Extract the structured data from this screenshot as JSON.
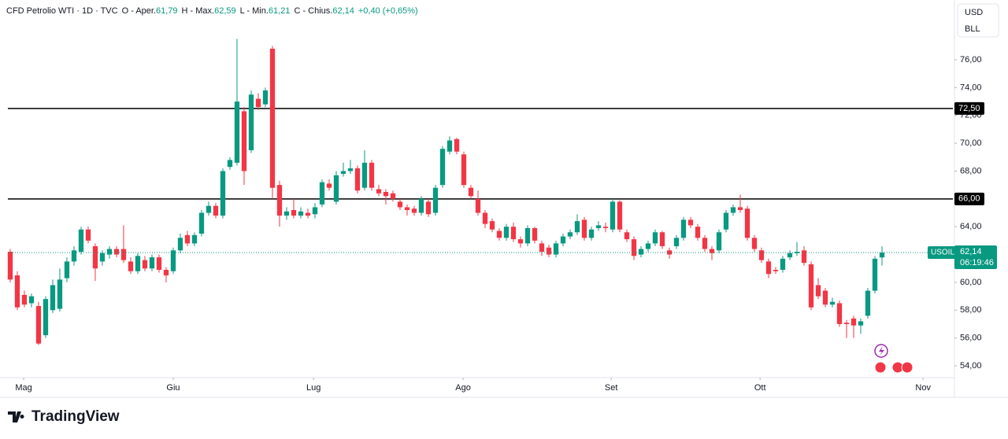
{
  "chart_data": {
    "type": "candlestick",
    "header": {
      "symbol": "CFD Petrolio WTI · 1D · TVC",
      "items": [
        {
          "label": "O - Aper.",
          "value": "61,79"
        },
        {
          "label": "H - Max.",
          "value": "62,59"
        },
        {
          "label": "L - Min.",
          "value": "61,21"
        },
        {
          "label": "C - Chius.",
          "value": "62,14"
        }
      ],
      "change": "+0,40 (+0,65%)"
    },
    "currency": "USD",
    "unit": "BLL",
    "brand": "TradingView",
    "up_color": "#089981",
    "down_color": "#f23645",
    "ylim": [
      53.15,
      80.3
    ],
    "yticks": [
      {
        "value": 54,
        "label": "54,00"
      },
      {
        "value": 56,
        "label": "56,00"
      },
      {
        "value": 58,
        "label": "58,00"
      },
      {
        "value": 60,
        "label": "60,00"
      },
      {
        "value": 62,
        "label": "62,00"
      },
      {
        "value": 64,
        "label": "64,00"
      },
      {
        "value": 66,
        "label": "66,00"
      },
      {
        "value": 68,
        "label": "68,00"
      },
      {
        "value": 70,
        "label": "70,00"
      },
      {
        "value": 72,
        "label": "72,00"
      },
      {
        "value": 74,
        "label": "74,00"
      },
      {
        "value": 76,
        "label": "76,00"
      }
    ],
    "xlim": [
      -0.33,
      133
    ],
    "xticks": [
      {
        "value": 1.9,
        "label": "Mag"
      },
      {
        "value": 23,
        "label": "Giu"
      },
      {
        "value": 42.8,
        "label": "Lug"
      },
      {
        "value": 63.9,
        "label": "Ago"
      },
      {
        "value": 84.8,
        "label": "Set"
      },
      {
        "value": 105.8,
        "label": "Ott"
      },
      {
        "value": 128.8,
        "label": "Nov"
      }
    ],
    "hlines": [
      {
        "value": 72.5,
        "label": "72,50"
      },
      {
        "value": 66,
        "label": "66,00"
      }
    ],
    "price_label": {
      "symbol": "USOIL",
      "value": {
        "value": 62.14,
        "label": "62,14"
      },
      "countdown": "06:19:46"
    },
    "candles": [
      {
        "o": 62.2,
        "h": 62.4,
        "l": 60.0,
        "c": 60.2
      },
      {
        "o": 60.5,
        "h": 60.8,
        "l": 58.0,
        "c": 58.2
      },
      {
        "o": 59.1,
        "h": 59.4,
        "l": 58.2,
        "c": 58.4
      },
      {
        "o": 58.5,
        "h": 59.2,
        "l": 58.2,
        "c": 59.0
      },
      {
        "o": 58.3,
        "h": 58.6,
        "l": 55.5,
        "c": 55.6
      },
      {
        "o": 56.2,
        "h": 59.0,
        "l": 56.0,
        "c": 58.8
      },
      {
        "o": 58.0,
        "h": 60.2,
        "l": 57.8,
        "c": 59.8
      },
      {
        "o": 58.1,
        "h": 61.0,
        "l": 57.9,
        "c": 60.2
      },
      {
        "o": 60.3,
        "h": 61.8,
        "l": 60.0,
        "c": 61.5
      },
      {
        "o": 61.5,
        "h": 62.6,
        "l": 61.2,
        "c": 62.3
      },
      {
        "o": 62.2,
        "h": 64.0,
        "l": 62.0,
        "c": 63.8
      },
      {
        "o": 63.8,
        "h": 64.0,
        "l": 62.8,
        "c": 63.0
      },
      {
        "o": 62.6,
        "h": 62.8,
        "l": 60.1,
        "c": 61.0
      },
      {
        "o": 61.5,
        "h": 62.3,
        "l": 61.2,
        "c": 62.1
      },
      {
        "o": 62.0,
        "h": 62.6,
        "l": 61.7,
        "c": 62.4
      },
      {
        "o": 62.4,
        "h": 62.6,
        "l": 61.8,
        "c": 62.0
      },
      {
        "o": 62.4,
        "h": 64.1,
        "l": 61.4,
        "c": 61.6
      },
      {
        "o": 61.5,
        "h": 61.8,
        "l": 60.6,
        "c": 60.8
      },
      {
        "o": 60.8,
        "h": 62.1,
        "l": 60.6,
        "c": 61.9
      },
      {
        "o": 61.6,
        "h": 61.9,
        "l": 60.8,
        "c": 61.0
      },
      {
        "o": 61.0,
        "h": 62.0,
        "l": 60.8,
        "c": 61.8
      },
      {
        "o": 61.8,
        "h": 62.0,
        "l": 60.7,
        "c": 60.9
      },
      {
        "o": 60.9,
        "h": 61.1,
        "l": 60.0,
        "c": 60.5
      },
      {
        "o": 60.8,
        "h": 62.5,
        "l": 60.6,
        "c": 62.3
      },
      {
        "o": 62.3,
        "h": 63.5,
        "l": 62.1,
        "c": 63.2
      },
      {
        "o": 63.4,
        "h": 63.7,
        "l": 62.6,
        "c": 62.8
      },
      {
        "o": 62.8,
        "h": 63.6,
        "l": 62.6,
        "c": 63.4
      },
      {
        "o": 63.5,
        "h": 65.2,
        "l": 63.3,
        "c": 65.0
      },
      {
        "o": 65.0,
        "h": 65.8,
        "l": 64.8,
        "c": 65.5
      },
      {
        "o": 65.5,
        "h": 65.7,
        "l": 64.6,
        "c": 64.8
      },
      {
        "o": 64.8,
        "h": 68.2,
        "l": 64.6,
        "c": 68.0
      },
      {
        "o": 68.3,
        "h": 69.0,
        "l": 68.1,
        "c": 68.8
      },
      {
        "o": 68.6,
        "h": 77.5,
        "l": 68.4,
        "c": 73.0
      },
      {
        "o": 72.3,
        "h": 72.6,
        "l": 67.0,
        "c": 68.0
      },
      {
        "o": 69.5,
        "h": 73.8,
        "l": 69.3,
        "c": 73.5
      },
      {
        "o": 73.2,
        "h": 73.6,
        "l": 72.4,
        "c": 72.6
      },
      {
        "o": 72.8,
        "h": 74.0,
        "l": 72.6,
        "c": 73.8
      },
      {
        "o": 76.8,
        "h": 77.0,
        "l": 66.0,
        "c": 66.8
      },
      {
        "o": 67.0,
        "h": 67.3,
        "l": 64.0,
        "c": 64.8
      },
      {
        "o": 64.8,
        "h": 65.4,
        "l": 64.5,
        "c": 65.1
      },
      {
        "o": 65.2,
        "h": 66.0,
        "l": 64.6,
        "c": 64.8
      },
      {
        "o": 64.8,
        "h": 65.4,
        "l": 64.6,
        "c": 65.1
      },
      {
        "o": 65.0,
        "h": 65.3,
        "l": 64.6,
        "c": 64.8
      },
      {
        "o": 64.9,
        "h": 65.7,
        "l": 64.6,
        "c": 65.4
      },
      {
        "o": 65.6,
        "h": 67.4,
        "l": 65.4,
        "c": 67.2
      },
      {
        "o": 67.1,
        "h": 67.4,
        "l": 66.6,
        "c": 66.8
      },
      {
        "o": 65.8,
        "h": 68.0,
        "l": 65.6,
        "c": 67.7
      },
      {
        "o": 67.8,
        "h": 68.6,
        "l": 67.6,
        "c": 68.0
      },
      {
        "o": 68.0,
        "h": 68.8,
        "l": 67.8,
        "c": 68.2
      },
      {
        "o": 68.2,
        "h": 68.4,
        "l": 66.4,
        "c": 66.6
      },
      {
        "o": 66.8,
        "h": 69.5,
        "l": 66.6,
        "c": 68.6
      },
      {
        "o": 68.6,
        "h": 68.8,
        "l": 66.6,
        "c": 66.8
      },
      {
        "o": 66.7,
        "h": 67.0,
        "l": 66.2,
        "c": 66.4
      },
      {
        "o": 66.5,
        "h": 66.7,
        "l": 65.6,
        "c": 66.2
      },
      {
        "o": 66.4,
        "h": 66.6,
        "l": 65.8,
        "c": 66.0
      },
      {
        "o": 65.8,
        "h": 66.0,
        "l": 65.2,
        "c": 65.4
      },
      {
        "o": 65.4,
        "h": 65.6,
        "l": 64.8,
        "c": 65.2
      },
      {
        "o": 65.3,
        "h": 65.5,
        "l": 64.8,
        "c": 65.0
      },
      {
        "o": 65.0,
        "h": 66.2,
        "l": 64.8,
        "c": 66.0
      },
      {
        "o": 65.8,
        "h": 66.0,
        "l": 64.7,
        "c": 64.9
      },
      {
        "o": 65.0,
        "h": 67.0,
        "l": 64.8,
        "c": 66.8
      },
      {
        "o": 67.0,
        "h": 69.8,
        "l": 66.8,
        "c": 69.6
      },
      {
        "o": 69.4,
        "h": 70.5,
        "l": 69.2,
        "c": 70.2
      },
      {
        "o": 70.3,
        "h": 70.4,
        "l": 69.2,
        "c": 69.4
      },
      {
        "o": 69.2,
        "h": 69.4,
        "l": 66.8,
        "c": 67.0
      },
      {
        "o": 66.8,
        "h": 67.0,
        "l": 66.0,
        "c": 66.2
      },
      {
        "o": 66.0,
        "h": 66.6,
        "l": 64.8,
        "c": 65.0
      },
      {
        "o": 65.0,
        "h": 65.2,
        "l": 63.9,
        "c": 64.2
      },
      {
        "o": 64.4,
        "h": 64.6,
        "l": 63.6,
        "c": 63.8
      },
      {
        "o": 63.7,
        "h": 63.9,
        "l": 63.0,
        "c": 63.2
      },
      {
        "o": 63.2,
        "h": 64.2,
        "l": 63.0,
        "c": 64.0
      },
      {
        "o": 64.0,
        "h": 64.3,
        "l": 62.9,
        "c": 63.1
      },
      {
        "o": 63.1,
        "h": 63.3,
        "l": 62.5,
        "c": 62.8
      },
      {
        "o": 62.8,
        "h": 64.1,
        "l": 62.6,
        "c": 63.9
      },
      {
        "o": 63.9,
        "h": 64.0,
        "l": 62.8,
        "c": 63.0
      },
      {
        "o": 62.8,
        "h": 63.0,
        "l": 61.9,
        "c": 62.2
      },
      {
        "o": 62.5,
        "h": 62.7,
        "l": 61.8,
        "c": 62.0
      },
      {
        "o": 62.0,
        "h": 63.0,
        "l": 61.8,
        "c": 62.8
      },
      {
        "o": 62.8,
        "h": 63.5,
        "l": 62.6,
        "c": 63.3
      },
      {
        "o": 63.3,
        "h": 63.8,
        "l": 63.1,
        "c": 63.6
      },
      {
        "o": 63.6,
        "h": 64.9,
        "l": 63.4,
        "c": 64.4
      },
      {
        "o": 64.5,
        "h": 64.7,
        "l": 63.0,
        "c": 63.2
      },
      {
        "o": 63.2,
        "h": 64.0,
        "l": 63.0,
        "c": 63.8
      },
      {
        "o": 63.9,
        "h": 64.4,
        "l": 63.7,
        "c": 64.1
      },
      {
        "o": 64.0,
        "h": 64.3,
        "l": 63.6,
        "c": 63.9
      },
      {
        "o": 63.8,
        "h": 66.0,
        "l": 63.6,
        "c": 65.8
      },
      {
        "o": 65.8,
        "h": 65.9,
        "l": 63.6,
        "c": 63.8
      },
      {
        "o": 63.6,
        "h": 63.8,
        "l": 62.9,
        "c": 63.1
      },
      {
        "o": 63.1,
        "h": 63.3,
        "l": 61.6,
        "c": 61.9
      },
      {
        "o": 62.0,
        "h": 62.6,
        "l": 61.8,
        "c": 62.4
      },
      {
        "o": 62.4,
        "h": 63.0,
        "l": 62.2,
        "c": 62.8
      },
      {
        "o": 62.8,
        "h": 63.8,
        "l": 62.6,
        "c": 63.6
      },
      {
        "o": 63.6,
        "h": 63.7,
        "l": 62.4,
        "c": 62.6
      },
      {
        "o": 62.3,
        "h": 62.5,
        "l": 61.7,
        "c": 62.0
      },
      {
        "o": 62.6,
        "h": 63.4,
        "l": 62.4,
        "c": 63.2
      },
      {
        "o": 63.2,
        "h": 64.7,
        "l": 63.0,
        "c": 64.5
      },
      {
        "o": 64.5,
        "h": 64.7,
        "l": 63.9,
        "c": 64.1
      },
      {
        "o": 64.0,
        "h": 64.2,
        "l": 63.0,
        "c": 63.2
      },
      {
        "o": 63.2,
        "h": 63.4,
        "l": 62.2,
        "c": 62.4
      },
      {
        "o": 62.4,
        "h": 62.6,
        "l": 61.6,
        "c": 62.1
      },
      {
        "o": 62.3,
        "h": 63.8,
        "l": 62.1,
        "c": 63.6
      },
      {
        "o": 63.8,
        "h": 65.2,
        "l": 63.6,
        "c": 65.0
      },
      {
        "o": 65.0,
        "h": 65.6,
        "l": 64.8,
        "c": 65.4
      },
      {
        "o": 65.4,
        "h": 66.3,
        "l": 65.0,
        "c": 65.2
      },
      {
        "o": 65.3,
        "h": 65.5,
        "l": 63.0,
        "c": 63.2
      },
      {
        "o": 63.2,
        "h": 63.4,
        "l": 62.2,
        "c": 62.4
      },
      {
        "o": 62.3,
        "h": 62.5,
        "l": 61.4,
        "c": 61.6
      },
      {
        "o": 61.5,
        "h": 61.7,
        "l": 60.3,
        "c": 60.6
      },
      {
        "o": 60.9,
        "h": 61.1,
        "l": 60.6,
        "c": 60.8
      },
      {
        "o": 60.9,
        "h": 61.9,
        "l": 60.7,
        "c": 61.7
      },
      {
        "o": 61.8,
        "h": 62.3,
        "l": 61.6,
        "c": 62.1
      },
      {
        "o": 62.1,
        "h": 62.9,
        "l": 61.9,
        "c": 62.2
      },
      {
        "o": 62.3,
        "h": 62.6,
        "l": 61.2,
        "c": 61.4
      },
      {
        "o": 61.3,
        "h": 61.5,
        "l": 58.0,
        "c": 58.2
      },
      {
        "o": 59.8,
        "h": 60.3,
        "l": 58.8,
        "c": 59.0
      },
      {
        "o": 59.4,
        "h": 59.6,
        "l": 58.2,
        "c": 58.4
      },
      {
        "o": 58.4,
        "h": 58.9,
        "l": 58.2,
        "c": 58.6
      },
      {
        "o": 58.5,
        "h": 58.7,
        "l": 56.8,
        "c": 57.0
      },
      {
        "o": 57.1,
        "h": 57.3,
        "l": 56.0,
        "c": 57.0
      },
      {
        "o": 57.4,
        "h": 57.6,
        "l": 56.0,
        "c": 56.9
      },
      {
        "o": 56.9,
        "h": 57.4,
        "l": 56.3,
        "c": 57.2
      },
      {
        "o": 57.6,
        "h": 59.6,
        "l": 57.4,
        "c": 59.4
      },
      {
        "o": 59.4,
        "h": 61.9,
        "l": 59.2,
        "c": 61.7
      },
      {
        "o": 61.79,
        "h": 62.59,
        "l": 61.21,
        "c": 62.14
      }
    ]
  }
}
